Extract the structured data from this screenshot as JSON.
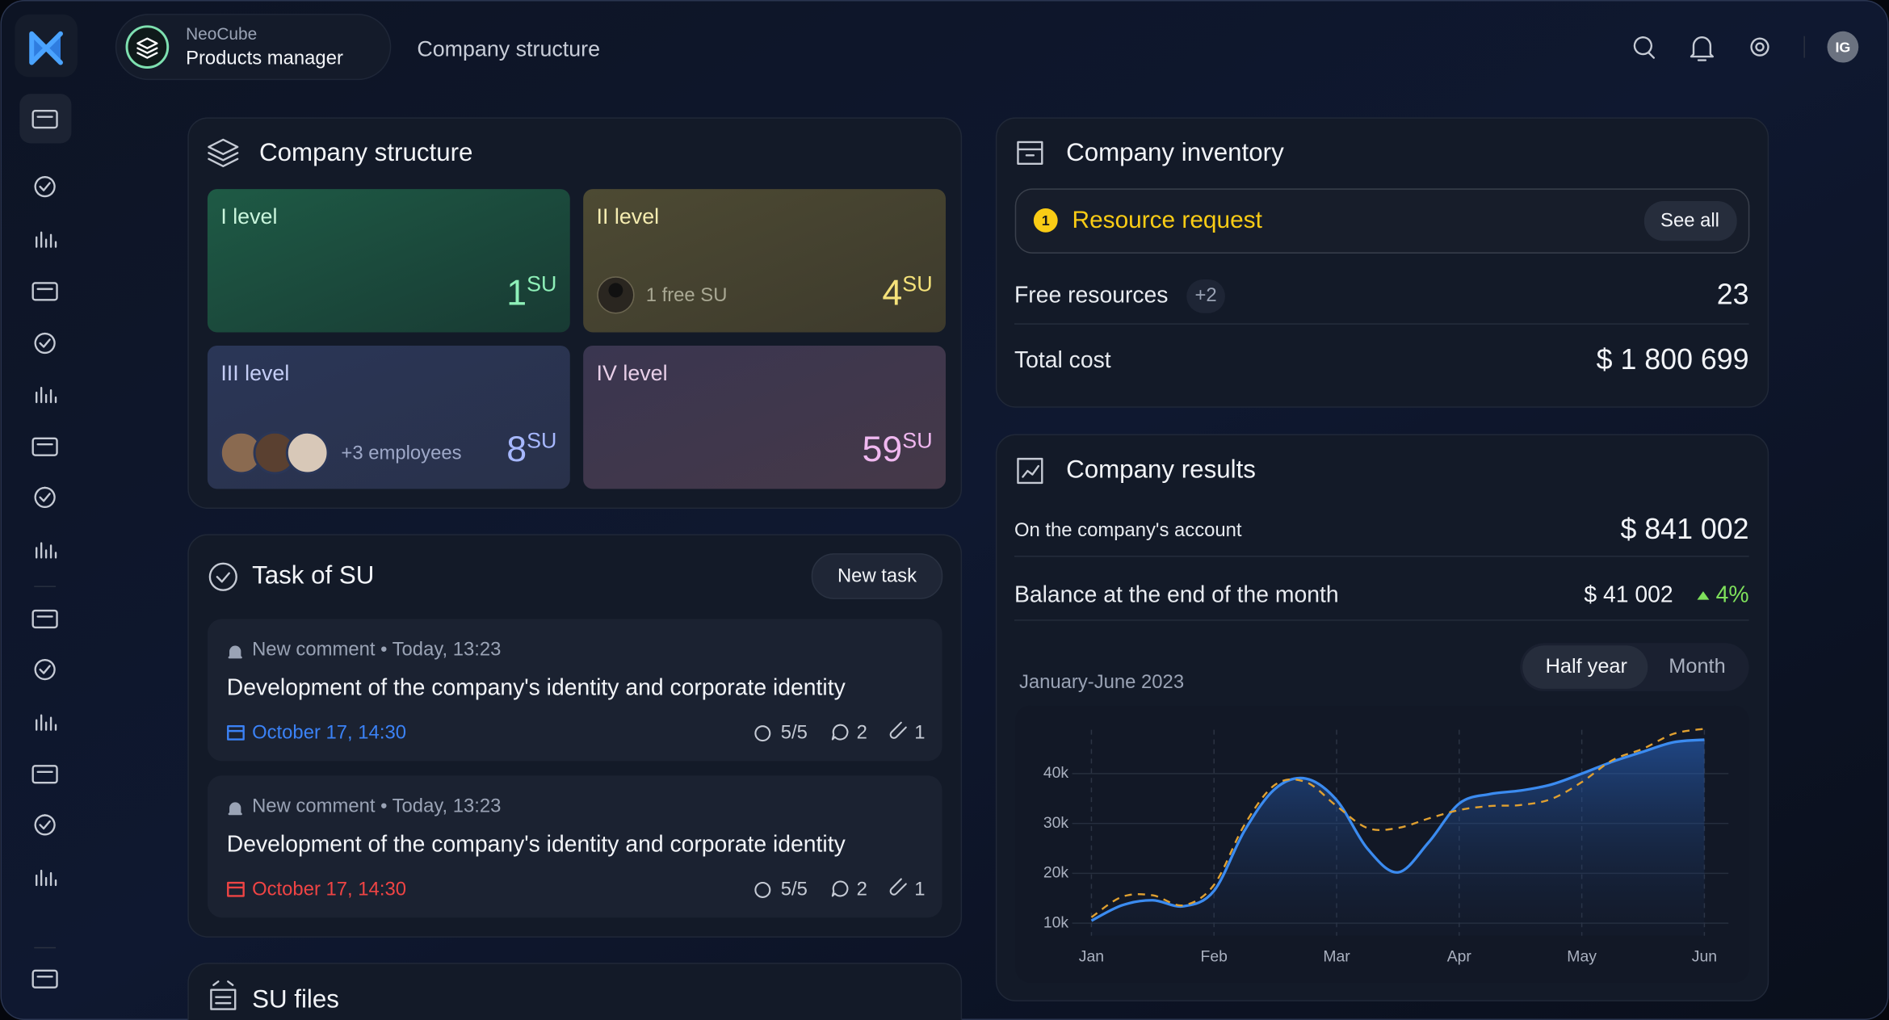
{
  "header": {
    "org": "NeoCube",
    "role": "Products manager",
    "page": "Company structure",
    "avatar": "IG"
  },
  "structure": {
    "title": "Company structure",
    "levels": [
      {
        "name": "I level",
        "count": 1,
        "unit": "SU"
      },
      {
        "name": "II level",
        "note": "1 free SU",
        "count": 4,
        "unit": "SU"
      },
      {
        "name": "III level",
        "note": "+3 employees",
        "count": 8,
        "unit": "SU"
      },
      {
        "name": "IV level",
        "count": 59,
        "unit": "SU"
      }
    ]
  },
  "tasks": {
    "title": "Task of SU",
    "button": "New task",
    "items": [
      {
        "event": "New comment • Today, 13:23",
        "title": "Development of the company's identity and corporate identity",
        "date": "October 17, 14:30",
        "checks": "5/5",
        "comments": 2,
        "attachments": 1
      },
      {
        "event": "New comment • Today, 13:23",
        "title": "Development of the company's identity and corporate identity",
        "date": "October 17, 14:30",
        "checks": "5/5",
        "comments": 2,
        "attachments": 1
      }
    ]
  },
  "files": {
    "title": "SU files"
  },
  "inventory": {
    "title": "Company inventory",
    "request": {
      "count": 1,
      "label": "Resource request",
      "button": "See all"
    },
    "free": {
      "label": "Free resources",
      "extra": "+2",
      "value": 23
    },
    "cost": {
      "label": "Total cost",
      "value": "$ 1 800 699"
    }
  },
  "results": {
    "title": "Company results",
    "account": {
      "label": "On the company's account",
      "value": "$ 841 002"
    },
    "balance": {
      "label": "Balance at the end of the month",
      "value": "$ 41 002",
      "change": "4%"
    },
    "tabs": [
      "Half year",
      "Month"
    ],
    "period": "January-June 2023"
  },
  "chart_data": {
    "type": "line",
    "x": [
      0,
      0.25,
      0.5,
      0.75,
      1,
      1.25,
      1.5,
      1.75,
      2,
      2.25,
      2.5,
      2.75,
      3,
      3.25,
      3.5,
      3.75,
      4,
      4.25,
      4.5,
      4.75,
      5
    ],
    "xlim": [
      0,
      5
    ],
    "xticks": [
      {
        "value": 0,
        "label": "Jan"
      },
      {
        "value": 1,
        "label": "Feb"
      },
      {
        "value": 2,
        "label": "Mar"
      },
      {
        "value": 3,
        "label": "Apr"
      },
      {
        "value": 4,
        "label": "May"
      },
      {
        "value": 5,
        "label": "Jun"
      }
    ],
    "ylim": [
      7500,
      50000
    ],
    "yticks": [
      {
        "value": 10000,
        "label": "10k"
      },
      {
        "value": 20000,
        "label": "20k"
      },
      {
        "value": 30000,
        "label": "30k"
      },
      {
        "value": 40000,
        "label": "40k"
      }
    ],
    "grid": true,
    "series": [
      {
        "color": "#3b8bf0",
        "values": [
          10500,
          13600,
          14600,
          13400,
          16500,
          28600,
          37000,
          39000,
          34700,
          25000,
          20200,
          26200,
          34000,
          35900,
          36600,
          37800,
          40000,
          42400,
          44400,
          46300,
          46800
        ]
      },
      {
        "color": "#e0a030",
        "dashed": true,
        "values": [
          11200,
          15300,
          15600,
          13600,
          17700,
          29800,
          37800,
          38300,
          33500,
          29100,
          29100,
          31000,
          32700,
          33500,
          33700,
          34900,
          38300,
          42700,
          45000,
          48000,
          49000
        ]
      }
    ]
  }
}
